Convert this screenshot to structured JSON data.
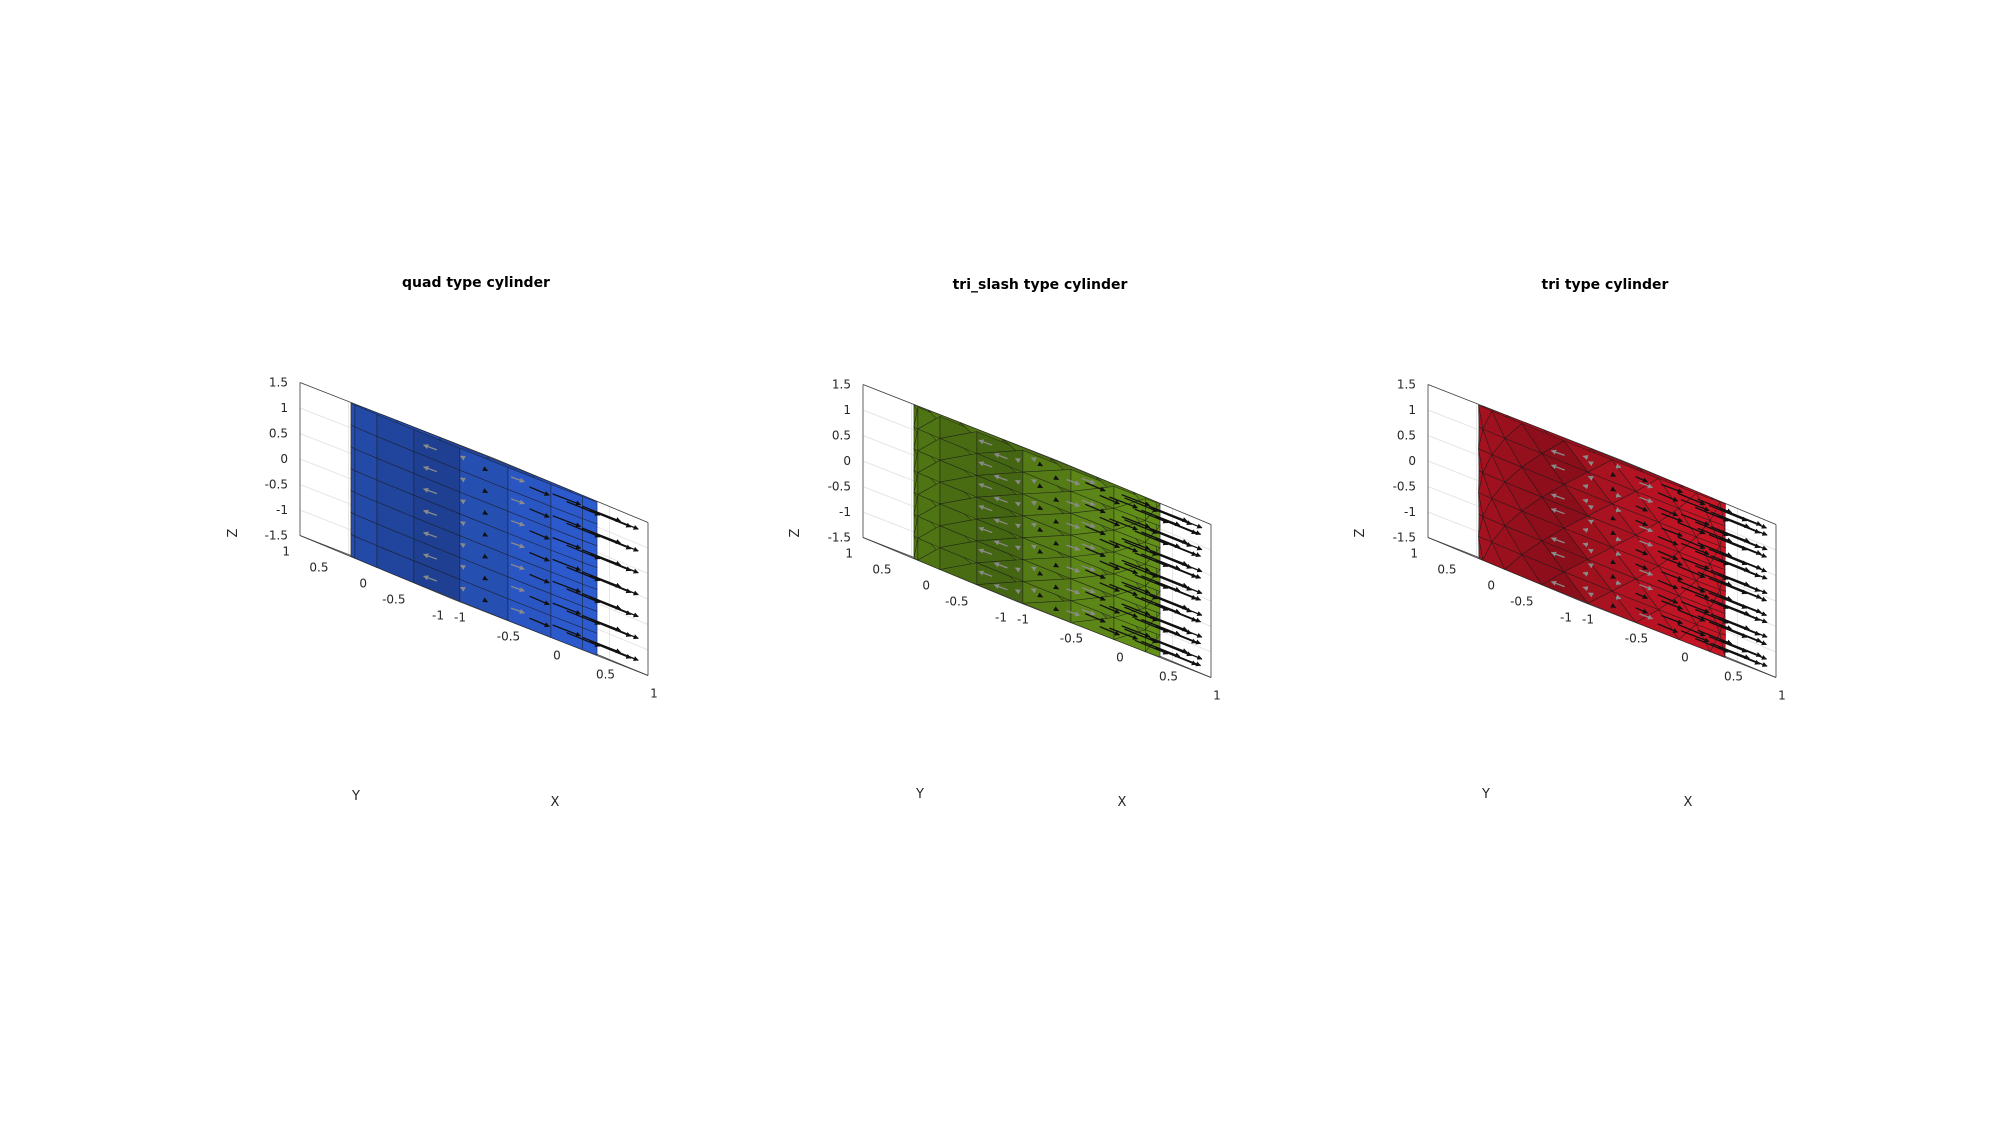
{
  "chart_data": [
    {
      "type": "surface3d",
      "title": "quad type cylinder",
      "face_type": "quad",
      "color": "#2b58c8",
      "xlabel": "X",
      "ylabel": "Y",
      "zlabel": "Z",
      "xlim": [
        -1,
        1
      ],
      "ylim": [
        -1,
        1
      ],
      "zlim": [
        -1.5,
        1.5
      ],
      "x_ticks": [
        "-1",
        "-0.5",
        "0",
        "0.5",
        "1"
      ],
      "y_ticks": [
        "-1",
        "-0.5",
        "0",
        "0.5",
        "1"
      ],
      "z_ticks": [
        "-1.5",
        "-1",
        "-0.5",
        "0",
        "0.5",
        "1",
        "1.5"
      ],
      "radius": 1,
      "height": 3,
      "segments": 16,
      "rings": 7,
      "normals": "face normals shown as arrows",
      "grid": true
    },
    {
      "type": "surface3d",
      "title": "tri_slash type cylinder",
      "face_type": "tri_slash",
      "color": "#5e8a18",
      "xlabel": "X",
      "ylabel": "Y",
      "zlabel": "Z",
      "xlim": [
        -1,
        1
      ],
      "ylim": [
        -1,
        1
      ],
      "zlim": [
        -1.5,
        1.5
      ],
      "x_ticks": [
        "-1",
        "-0.5",
        "0",
        "0.5",
        "1"
      ],
      "y_ticks": [
        "-1",
        "-0.5",
        "0",
        "0.5",
        "1"
      ],
      "z_ticks": [
        "-1.5",
        "-1",
        "-0.5",
        "0",
        "0.5",
        "1",
        "1.5"
      ],
      "radius": 1,
      "height": 3,
      "segments": 16,
      "rings": 7,
      "normals": "face normals shown as arrows",
      "grid": true
    },
    {
      "type": "surface3d",
      "title": "tri type cylinder",
      "face_type": "tri",
      "color": "#be1424",
      "xlabel": "X",
      "ylabel": "Y",
      "zlabel": "Z",
      "xlim": [
        -1,
        1
      ],
      "ylim": [
        -1,
        1
      ],
      "zlim": [
        -1.5,
        1.5
      ],
      "x_ticks": [
        "-1",
        "-0.5",
        "0",
        "0.5",
        "1"
      ],
      "y_ticks": [
        "-1",
        "-0.5",
        "0",
        "0.5",
        "1"
      ],
      "z_ticks": [
        "-1.5",
        "-1",
        "-0.5",
        "0",
        "0.5",
        "1",
        "1.5"
      ],
      "radius": 1,
      "height": 3,
      "segments": 16,
      "rings": 7,
      "normals": "face normals shown as arrows",
      "grid": true
    }
  ]
}
